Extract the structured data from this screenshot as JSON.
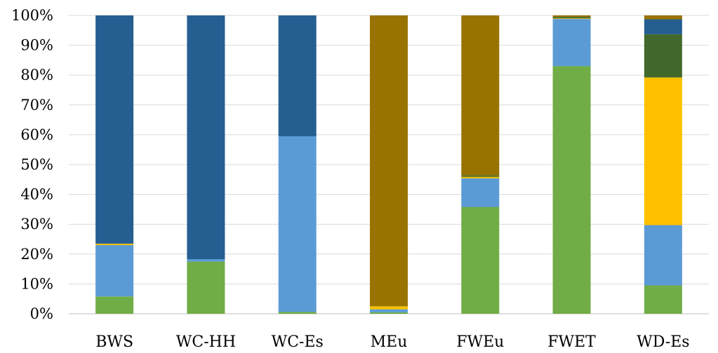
{
  "chart_data": {
    "type": "bar",
    "stacked": true,
    "percent": true,
    "categories": [
      "BWS",
      "WC-HH",
      "WC-Es",
      "MEu",
      "FWEu",
      "FWET",
      "WD-Es"
    ],
    "ylim": [
      0,
      100
    ],
    "yticks": [
      "0%",
      "10%",
      "20%",
      "30%",
      "40%",
      "50%",
      "60%",
      "70%",
      "80%",
      "90%",
      "100%"
    ],
    "grid": true,
    "legend": "none",
    "series": [
      {
        "color": "#70AD47",
        "values": [
          5.8,
          17.5,
          0.6,
          0.5,
          35.8,
          83.0,
          9.5
        ]
      },
      {
        "color": "#5B9BD5",
        "values": [
          17.2,
          0.8,
          58.9,
          1.0,
          9.6,
          15.8,
          20.2
        ]
      },
      {
        "color": "#FFC000",
        "values": [
          0.5,
          0.0,
          0.0,
          1.0,
          0.5,
          0.2,
          49.5
        ]
      },
      {
        "color": "#43682B",
        "values": [
          0.0,
          0.0,
          0.0,
          0.0,
          0.5,
          0.5,
          14.5
        ]
      },
      {
        "color": "#255E91",
        "values": [
          76.5,
          81.7,
          40.5,
          0.0,
          0.0,
          0.0,
          5.0
        ]
      },
      {
        "color": "#997300",
        "values": [
          0.0,
          0.0,
          0.0,
          97.5,
          53.6,
          0.5,
          1.3
        ]
      }
    ]
  }
}
